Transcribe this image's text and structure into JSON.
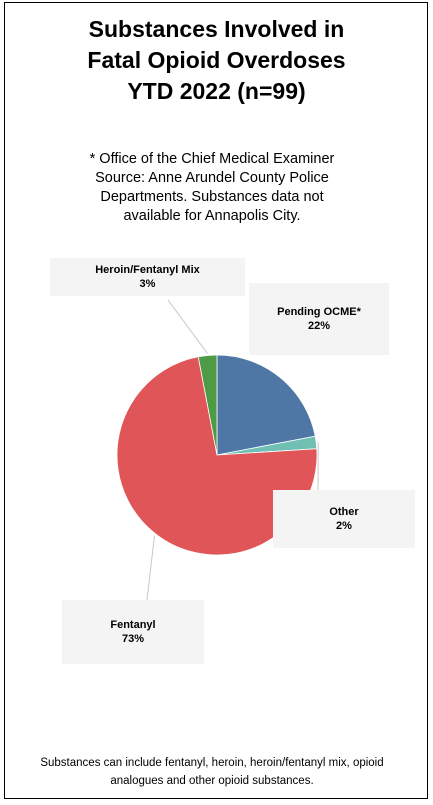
{
  "title_lines": [
    "Substances Involved in",
    "Fatal Opioid Overdoses",
    "YTD 2022 (n=99)"
  ],
  "note_lines": [
    "* Office of the Chief Medical Examiner",
    "Source: Anne Arundel County Police",
    "Departments. Substances data not",
    "available for Annapolis City."
  ],
  "footer_lines": [
    "Substances can include fentanyl, heroin, heroin/fentanyl mix, opioid",
    "analogues and other opioid substances."
  ],
  "chart_data": {
    "type": "pie",
    "title": "Substances Involved in Fatal Opioid Overdoses YTD 2022 (n=99)",
    "slices": [
      {
        "name": "Pending OCME*",
        "value": 22,
        "percent_label": "22%",
        "color": "#4f77a6"
      },
      {
        "name": "Other",
        "value": 2,
        "percent_label": "2%",
        "color": "#6fbfb3"
      },
      {
        "name": "Fentanyl",
        "value": 73,
        "percent_label": "73%",
        "color": "#e05557"
      },
      {
        "name": "Heroin/Fentanyl Mix",
        "value": 3,
        "percent_label": "3%",
        "color": "#4e9a45"
      }
    ]
  }
}
